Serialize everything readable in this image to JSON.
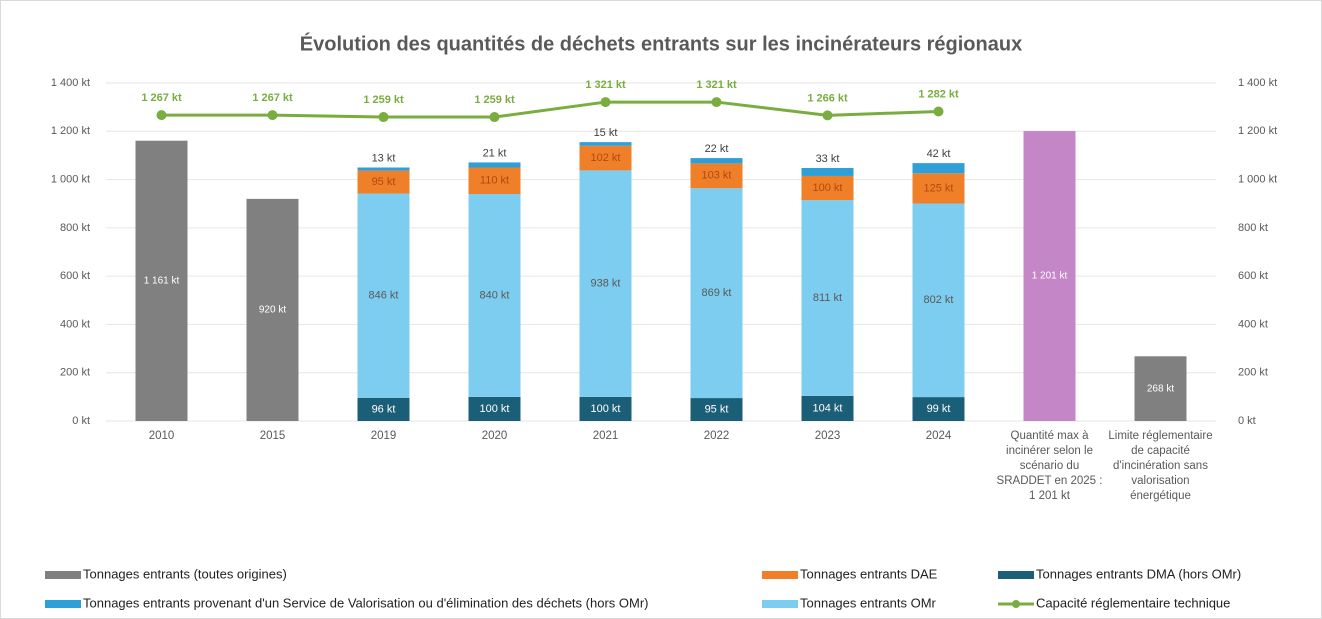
{
  "chart_data": {
    "type": "bar",
    "title": "Évolution des quantités de déchets entrants sur les incinérateurs régionaux",
    "categories": [
      "2010",
      "2015",
      "2019",
      "2020",
      "2021",
      "2022",
      "2023",
      "2024",
      "Quantité max à incinérer selon le scénario du SRADDET en 2025 : 1 201 kt",
      "Limite réglementaire de capacité d'incinération sans valorisation énergétique"
    ],
    "series": [
      {
        "name": "Tonnages entrants (toutes origines)",
        "color": "#808080",
        "colors": [
          "#808080",
          "#808080",
          "#808080",
          "#808080",
          "#808080",
          "#808080",
          "#808080",
          "#808080",
          "#c586c8",
          "#808080"
        ],
        "values": [
          1161,
          920,
          null,
          null,
          null,
          null,
          null,
          null,
          1201,
          268
        ],
        "value_labels": [
          "1 161 kt",
          "920 kt",
          null,
          null,
          null,
          null,
          null,
          null,
          "1 201 kt",
          "268 kt"
        ]
      },
      {
        "name": "Tonnages entrants DAE",
        "color": "#f07f2a",
        "values": [
          null,
          null,
          95,
          110,
          102,
          103,
          100,
          125,
          null,
          null
        ],
        "value_labels": [
          null,
          null,
          "95 kt",
          "110 kt",
          "102 kt",
          "103 kt",
          "100 kt",
          "125 kt",
          null,
          null
        ]
      },
      {
        "name": "Tonnages entrants DMA (hors OMr)",
        "color": "#1b5e78",
        "values": [
          null,
          null,
          96,
          100,
          100,
          95,
          104,
          99,
          null,
          null
        ],
        "value_labels": [
          null,
          null,
          "96 kt",
          "100 kt",
          "100 kt",
          "95 kt",
          "104 kt",
          "99 kt",
          null,
          null
        ]
      },
      {
        "name": "Tonnages entrants provenant d'un Service de Valorisation ou d'élimination des déchets (hors OMr)",
        "color": "#2f9fd8",
        "values": [
          null,
          null,
          13,
          21,
          15,
          22,
          33,
          42,
          null,
          null
        ],
        "value_labels": [
          null,
          null,
          "13 kt",
          "21 kt",
          "15 kt",
          "22 kt",
          "33 kt",
          "42 kt",
          null,
          null
        ]
      },
      {
        "name": "Tonnages entrants OMr",
        "color": "#7dcdf0",
        "values": [
          null,
          null,
          846,
          840,
          938,
          869,
          811,
          802,
          null,
          null
        ],
        "value_labels": [
          null,
          null,
          "846 kt",
          "840 kt",
          "938 kt",
          "869 kt",
          "811 kt",
          "802 kt",
          null,
          null
        ]
      },
      {
        "name": "Capacité réglementaire technique",
        "color": "#79ad3f",
        "type": "line",
        "values": [
          1267,
          1267,
          1259,
          1259,
          1321,
          1321,
          1266,
          1282,
          null,
          null
        ],
        "value_labels": [
          "1 267 kt",
          "1 267 kt",
          "1 259 kt",
          "1 259 kt",
          "1 321 kt",
          "1 321 kt",
          "1 266 kt",
          "1 282 kt",
          null,
          null
        ]
      }
    ],
    "ylim": [
      0,
      1400
    ],
    "yticks": [
      {
        "value": 0,
        "label": "0 kt"
      },
      {
        "value": 200,
        "label": "200 kt"
      },
      {
        "value": 400,
        "label": "400 kt"
      },
      {
        "value": 600,
        "label": "600 kt"
      },
      {
        "value": 800,
        "label": "800 kt"
      },
      {
        "value": 1000,
        "label": "1 000 kt"
      },
      {
        "value": 1200,
        "label": "1 200 kt"
      },
      {
        "value": 1400,
        "label": "1 400 kt"
      }
    ],
    "y2lim": [
      0,
      1400
    ],
    "y2ticks": [
      {
        "value": 0,
        "label": "0 kt"
      },
      {
        "value": 200,
        "label": "200 kt"
      },
      {
        "value": 400,
        "label": "400 kt"
      },
      {
        "value": 600,
        "label": "600 kt"
      },
      {
        "value": 800,
        "label": "800 kt"
      },
      {
        "value": 1000,
        "label": "1 000 kt"
      },
      {
        "value": 1200,
        "label": "1 200 kt"
      },
      {
        "value": 1400,
        "label": "1 400 kt"
      }
    ],
    "legend": "bottom"
  }
}
